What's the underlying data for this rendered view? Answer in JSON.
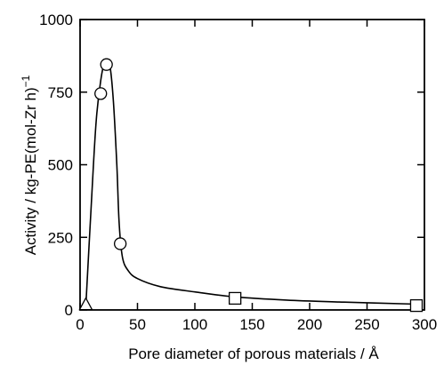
{
  "chart_data": {
    "type": "scatter",
    "xlabel": "Pore diameter of porous materials / Å",
    "ylabel_main": "Activity / kg-PE(mol-Zr h)",
    "ylabel_sup": "−1",
    "xlim": [
      0,
      300
    ],
    "ylim": [
      0,
      1000
    ],
    "x_ticks": [
      "0",
      "50",
      "100",
      "150",
      "200",
      "250",
      "300"
    ],
    "y_ticks": [
      "0",
      "250",
      "500",
      "750",
      "1000"
    ],
    "grid": false,
    "legend": "none",
    "series": [
      {
        "marker": "triangle",
        "points": [
          [
            5,
            15
          ]
        ]
      },
      {
        "marker": "circle",
        "points": [
          [
            18,
            745
          ],
          [
            23,
            845
          ],
          [
            35,
            228
          ]
        ]
      },
      {
        "marker": "square",
        "points": [
          [
            135,
            40
          ],
          [
            293,
            15
          ]
        ]
      }
    ],
    "trend_curve": [
      [
        5,
        15
      ],
      [
        10,
        380
      ],
      [
        14,
        650
      ],
      [
        18,
        790
      ],
      [
        22,
        860
      ],
      [
        26,
        840
      ],
      [
        29,
        720
      ],
      [
        32,
        500
      ],
      [
        34,
        300
      ],
      [
        37,
        180
      ],
      [
        42,
        135
      ],
      [
        50,
        108
      ],
      [
        70,
        80
      ],
      [
        100,
        62
      ],
      [
        135,
        45
      ],
      [
        180,
        34
      ],
      [
        230,
        27
      ],
      [
        293,
        20
      ]
    ]
  }
}
